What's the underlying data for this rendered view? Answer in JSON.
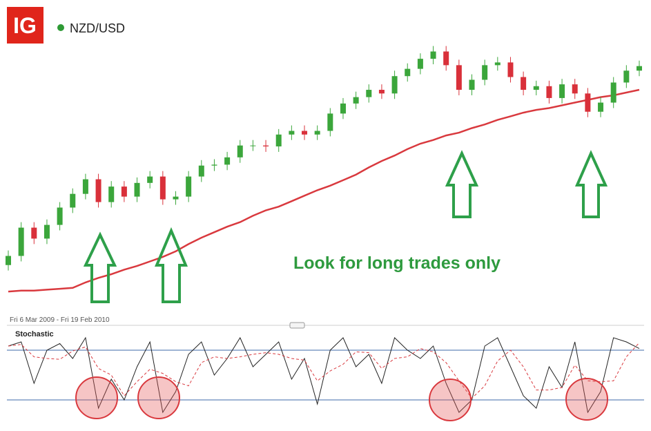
{
  "header": {
    "logo": "IG",
    "symbol": "NZD/USD"
  },
  "date_range": "Fri 6 Mar 2009 - Fri 19 Feb 2010",
  "chart_data": [
    {
      "type": "candlestick",
      "annotation": "Look for long trades only",
      "ylim": [
        0.48,
        0.76
      ],
      "up_color": "#3ba63b",
      "down_color": "#d9303a",
      "open": [
        0.515,
        0.525,
        0.556,
        0.544,
        0.559,
        0.578,
        0.593,
        0.609,
        0.584,
        0.601,
        0.59,
        0.605,
        0.612,
        0.587,
        0.59,
        0.612,
        0.624,
        0.625,
        0.633,
        0.646,
        0.646,
        0.645,
        0.658,
        0.662,
        0.658,
        0.662,
        0.681,
        0.692,
        0.699,
        0.707,
        0.703,
        0.722,
        0.73,
        0.741,
        0.749,
        0.734,
        0.707,
        0.718,
        0.734,
        0.737,
        0.721,
        0.707,
        0.711,
        0.698,
        0.713,
        0.703,
        0.683,
        0.693,
        0.715,
        0.728
      ],
      "high": [
        0.531,
        0.562,
        0.562,
        0.565,
        0.584,
        0.599,
        0.615,
        0.615,
        0.607,
        0.607,
        0.611,
        0.618,
        0.618,
        0.596,
        0.618,
        0.63,
        0.631,
        0.639,
        0.652,
        0.652,
        0.652,
        0.664,
        0.668,
        0.668,
        0.668,
        0.687,
        0.698,
        0.705,
        0.713,
        0.713,
        0.728,
        0.736,
        0.747,
        0.755,
        0.755,
        0.74,
        0.724,
        0.74,
        0.743,
        0.743,
        0.727,
        0.717,
        0.717,
        0.719,
        0.719,
        0.709,
        0.699,
        0.721,
        0.734,
        0.739
      ],
      "low": [
        0.509,
        0.519,
        0.538,
        0.538,
        0.553,
        0.572,
        0.587,
        0.578,
        0.578,
        0.584,
        0.584,
        0.599,
        0.581,
        0.581,
        0.584,
        0.606,
        0.618,
        0.619,
        0.627,
        0.64,
        0.639,
        0.639,
        0.652,
        0.652,
        0.652,
        0.656,
        0.675,
        0.686,
        0.693,
        0.697,
        0.697,
        0.716,
        0.724,
        0.735,
        0.728,
        0.701,
        0.701,
        0.712,
        0.728,
        0.715,
        0.701,
        0.701,
        0.692,
        0.692,
        0.697,
        0.677,
        0.677,
        0.687,
        0.709,
        0.722
      ],
      "close": [
        0.525,
        0.556,
        0.544,
        0.559,
        0.578,
        0.593,
        0.609,
        0.584,
        0.601,
        0.59,
        0.605,
        0.612,
        0.587,
        0.59,
        0.612,
        0.624,
        0.625,
        0.633,
        0.646,
        0.646,
        0.645,
        0.658,
        0.662,
        0.658,
        0.662,
        0.681,
        0.692,
        0.699,
        0.707,
        0.703,
        0.722,
        0.73,
        0.741,
        0.749,
        0.734,
        0.707,
        0.718,
        0.734,
        0.737,
        0.721,
        0.707,
        0.711,
        0.698,
        0.713,
        0.703,
        0.683,
        0.693,
        0.715,
        0.728,
        0.733
      ],
      "moving_average": {
        "color": "#d9393e",
        "values": [
          0.486,
          0.487,
          0.487,
          0.488,
          0.489,
          0.49,
          0.496,
          0.501,
          0.505,
          0.51,
          0.514,
          0.519,
          0.524,
          0.53,
          0.538,
          0.545,
          0.551,
          0.557,
          0.562,
          0.569,
          0.575,
          0.579,
          0.585,
          0.591,
          0.597,
          0.602,
          0.608,
          0.614,
          0.622,
          0.629,
          0.635,
          0.642,
          0.648,
          0.652,
          0.657,
          0.66,
          0.665,
          0.669,
          0.674,
          0.678,
          0.682,
          0.685,
          0.687,
          0.69,
          0.693,
          0.696,
          0.699,
          0.701,
          0.704,
          0.707
        ]
      }
    },
    {
      "type": "line",
      "title": "Stochastic",
      "ylim": [
        0,
        100
      ],
      "levels": [
        20,
        80
      ],
      "level_color": "#3c68a8",
      "series": [
        {
          "color": "#222222",
          "values": [
            85,
            90,
            40,
            80,
            88,
            70,
            95,
            10,
            45,
            20,
            60,
            90,
            5,
            30,
            75,
            90,
            50,
            70,
            95,
            60,
            75,
            90,
            45,
            70,
            15,
            80,
            95,
            60,
            75,
            40,
            95,
            80,
            70,
            85,
            40,
            5,
            20,
            85,
            95,
            60,
            25,
            10,
            60,
            35,
            90,
            5,
            30,
            95,
            90,
            82
          ]
        },
        {
          "color": "#d9393e",
          "dashed": true,
          "values": [
            85,
            87,
            72,
            70,
            69,
            79,
            84,
            58,
            50,
            25,
            42,
            57,
            52,
            42,
            37,
            65,
            72,
            70,
            72,
            75,
            77,
            75,
            70,
            68,
            43,
            55,
            63,
            78,
            77,
            58,
            70,
            72,
            82,
            78,
            65,
            43,
            22,
            37,
            67,
            80,
            60,
            32,
            32,
            35,
            62,
            43,
            42,
            43,
            72,
            89
          ]
        }
      ]
    }
  ]
}
